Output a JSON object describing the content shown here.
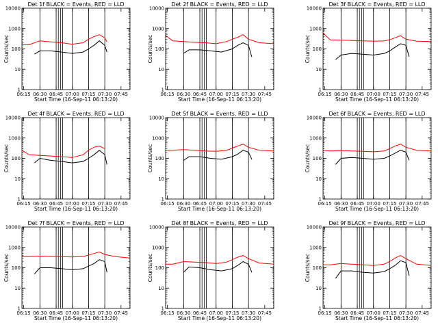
{
  "figure": {
    "panel_count": 9,
    "shared": {
      "xlabel": "Start Time (16-Sep-11 06:13:20)",
      "ylabel": "Counts/sec",
      "x_tick_labels": [
        "06:15",
        "06:30",
        "06:45",
        "07:00",
        "07:15",
        "07:30",
        "07:45"
      ],
      "y_tick_labels": [
        "1",
        "10",
        "100",
        "1000",
        "10000"
      ],
      "colors": {
        "events": "#000000",
        "lld": "#ff0000"
      }
    }
  },
  "chart_data": [
    {
      "type": "line",
      "title": "Det 1f BLACK = Events, RED = LLD",
      "xlabel": "Start Time (16-Sep-11 06:13:20)",
      "ylabel": "Counts/sec",
      "y_scale": "log",
      "ylim": [
        1,
        10000
      ],
      "xlim": [
        "06:13:20",
        "07:53:20"
      ],
      "grid": "dotted",
      "series": [
        {
          "key": "events",
          "color": "#000000",
          "x": [
            "06:25",
            "06:30",
            "06:40",
            "06:50",
            "07:00",
            "07:10",
            "07:15",
            "07:20",
            "07:25",
            "07:30",
            "07:32"
          ],
          "values": [
            55,
            80,
            80,
            70,
            60,
            70,
            100,
            150,
            250,
            150,
            70
          ]
        },
        {
          "key": "lld",
          "color": "#ff0000",
          "x": [
            "06:13:20",
            "06:20",
            "06:30",
            "06:40",
            "06:50",
            "07:00",
            "07:10",
            "07:15",
            "07:20",
            "07:25",
            "07:30",
            "07:32"
          ],
          "values": [
            160,
            160,
            250,
            220,
            200,
            170,
            200,
            300,
            400,
            500,
            350,
            220
          ]
        }
      ]
    },
    {
      "type": "line",
      "title": "Det 2f BLACK = Events, RED = LLD",
      "xlabel": "Start Time (16-Sep-11 06:13:20)",
      "ylabel": "Counts/sec",
      "y_scale": "log",
      "ylim": [
        1,
        10000
      ],
      "xlim": [
        "06:13:20",
        "07:53:20"
      ],
      "grid": "dotted",
      "series": [
        {
          "key": "events",
          "color": "#000000",
          "x": [
            "06:30",
            "06:35",
            "06:45",
            "06:55",
            "07:05",
            "07:15",
            "07:20",
            "07:25",
            "07:30",
            "07:33"
          ],
          "values": [
            60,
            90,
            90,
            80,
            70,
            100,
            150,
            200,
            150,
            40
          ]
        },
        {
          "key": "lld",
          "color": "#ff0000",
          "x": [
            "06:13:20",
            "06:20",
            "06:30",
            "06:40",
            "06:50",
            "07:00",
            "07:10",
            "07:15",
            "07:20",
            "07:25",
            "07:30",
            "07:40",
            "07:53:20"
          ],
          "values": [
            450,
            250,
            230,
            210,
            200,
            180,
            230,
            300,
            370,
            500,
            300,
            200,
            180
          ]
        }
      ]
    },
    {
      "type": "line",
      "title": "Det 3f BLACK = Events, RED = LLD",
      "xlabel": "Start Time (16-Sep-11 06:13:20)",
      "ylabel": "Counts/sec",
      "y_scale": "log",
      "ylim": [
        1,
        10000
      ],
      "xlim": [
        "06:13:20",
        "07:53:20"
      ],
      "grid": "dotted",
      "series": [
        {
          "key": "events",
          "color": "#000000",
          "x": [
            "06:25",
            "06:30",
            "06:40",
            "06:50",
            "07:00",
            "07:10",
            "07:15",
            "07:20",
            "07:25",
            "07:30",
            "07:33"
          ],
          "values": [
            30,
            50,
            60,
            55,
            50,
            60,
            80,
            120,
            180,
            150,
            40
          ]
        },
        {
          "key": "lld",
          "color": "#ff0000",
          "x": [
            "06:13:20",
            "06:20",
            "06:30",
            "06:40",
            "06:50",
            "07:00",
            "07:10",
            "07:15",
            "07:20",
            "07:25",
            "07:30",
            "07:40",
            "07:53:20"
          ],
          "values": [
            600,
            280,
            270,
            260,
            250,
            240,
            250,
            280,
            350,
            450,
            300,
            240,
            230
          ]
        }
      ]
    },
    {
      "type": "line",
      "title": "Det 4f BLACK = Events, RED = LLD",
      "xlabel": "Start Time (16-Sep-11 06:13:20)",
      "ylabel": "Counts/sec",
      "y_scale": "log",
      "ylim": [
        1,
        10000
      ],
      "xlim": [
        "06:13:20",
        "07:53:20"
      ],
      "grid": "dotted",
      "series": [
        {
          "key": "events",
          "color": "#000000",
          "x": [
            "06:25",
            "06:30",
            "06:40",
            "06:50",
            "07:00",
            "07:10",
            "07:15",
            "07:20",
            "07:25",
            "07:30",
            "07:32"
          ],
          "values": [
            60,
            100,
            80,
            70,
            60,
            70,
            100,
            150,
            250,
            150,
            50
          ]
        },
        {
          "key": "lld",
          "color": "#ff0000",
          "x": [
            "06:13:20",
            "06:20",
            "06:30",
            "06:40",
            "06:50",
            "07:00",
            "07:10",
            "07:15",
            "07:20",
            "07:25",
            "07:30"
          ],
          "values": [
            250,
            150,
            140,
            130,
            120,
            110,
            150,
            250,
            350,
            400,
            300
          ]
        }
      ]
    },
    {
      "type": "line",
      "title": "Det 5f BLACK = Events, RED = LLD",
      "xlabel": "Start Time (16-Sep-11 06:13:20)",
      "ylabel": "Counts/sec",
      "y_scale": "log",
      "ylim": [
        1,
        10000
      ],
      "xlim": [
        "06:13:20",
        "07:53:20"
      ],
      "grid": "dotted",
      "series": [
        {
          "key": "events",
          "color": "#000000",
          "x": [
            "06:30",
            "06:35",
            "06:45",
            "06:55",
            "07:05",
            "07:15",
            "07:20",
            "07:25",
            "07:30",
            "07:33"
          ],
          "values": [
            80,
            120,
            120,
            100,
            90,
            120,
            160,
            250,
            200,
            90
          ]
        },
        {
          "key": "lld",
          "color": "#ff0000",
          "x": [
            "06:13:20",
            "06:20",
            "06:30",
            "06:40",
            "06:50",
            "07:00",
            "07:10",
            "07:15",
            "07:20",
            "07:25",
            "07:30",
            "07:40",
            "07:53:20"
          ],
          "values": [
            250,
            250,
            270,
            250,
            230,
            220,
            250,
            320,
            400,
            500,
            350,
            250,
            230
          ]
        }
      ]
    },
    {
      "type": "line",
      "title": "Det 6f BLACK = Events, RED = LLD",
      "xlabel": "Start Time (16-Sep-11 06:13:20)",
      "ylabel": "Counts/sec",
      "y_scale": "log",
      "ylim": [
        1,
        10000
      ],
      "xlim": [
        "06:13:20",
        "07:53:20"
      ],
      "grid": "dotted",
      "series": [
        {
          "key": "events",
          "color": "#000000",
          "x": [
            "06:25",
            "06:30",
            "06:40",
            "06:50",
            "07:00",
            "07:10",
            "07:15",
            "07:20",
            "07:25",
            "07:30",
            "07:33"
          ],
          "values": [
            50,
            100,
            110,
            100,
            90,
            100,
            130,
            180,
            250,
            200,
            80
          ]
        },
        {
          "key": "lld",
          "color": "#ff0000",
          "x": [
            "06:13:20",
            "06:20",
            "06:30",
            "06:40",
            "06:50",
            "07:00",
            "07:10",
            "07:15",
            "07:20",
            "07:25",
            "07:30",
            "07:40",
            "07:53:20"
          ],
          "values": [
            250,
            230,
            240,
            230,
            220,
            210,
            230,
            300,
            400,
            500,
            350,
            250,
            230
          ]
        }
      ]
    },
    {
      "type": "line",
      "title": "Det 7f BLACK = Events, RED = LLD",
      "xlabel": "Start Time (16-Sep-11 06:13:20)",
      "ylabel": "Counts/sec",
      "y_scale": "log",
      "ylim": [
        1,
        10000
      ],
      "xlim": [
        "06:13:20",
        "07:53:20"
      ],
      "grid": "dotted",
      "series": [
        {
          "key": "events",
          "color": "#000000",
          "x": [
            "06:25",
            "06:30",
            "06:40",
            "06:50",
            "07:00",
            "07:10",
            "07:15",
            "07:20",
            "07:25",
            "07:30",
            "07:32"
          ],
          "values": [
            50,
            100,
            100,
            90,
            80,
            90,
            120,
            160,
            250,
            200,
            60
          ]
        },
        {
          "key": "lld",
          "color": "#ff0000",
          "x": [
            "06:13:20",
            "06:20",
            "06:30",
            "06:40",
            "06:50",
            "07:00",
            "07:10",
            "07:15",
            "07:20",
            "07:25",
            "07:30",
            "07:40",
            "07:53:20"
          ],
          "values": [
            350,
            350,
            370,
            360,
            350,
            340,
            360,
            420,
            500,
            600,
            450,
            350,
            300
          ]
        }
      ]
    },
    {
      "type": "line",
      "title": "Det 8f BLACK = Events, RED = LLD",
      "xlabel": "Start Time (16-Sep-11 06:13:20)",
      "ylabel": "Counts/sec",
      "y_scale": "log",
      "ylim": [
        1,
        10000
      ],
      "xlim": [
        "06:13:20",
        "07:53:20"
      ],
      "grid": "dotted",
      "series": [
        {
          "key": "events",
          "color": "#000000",
          "x": [
            "06:30",
            "06:35",
            "06:45",
            "06:55",
            "07:05",
            "07:15",
            "07:20",
            "07:25",
            "07:30",
            "07:33"
          ],
          "values": [
            60,
            110,
            100,
            80,
            70,
            90,
            130,
            200,
            150,
            60
          ]
        },
        {
          "key": "lld",
          "color": "#ff0000",
          "x": [
            "06:13:20",
            "06:20",
            "06:30",
            "06:40",
            "06:50",
            "07:00",
            "07:10",
            "07:15",
            "07:20",
            "07:25",
            "07:30",
            "07:40",
            "07:53:20"
          ],
          "values": [
            150,
            150,
            200,
            190,
            180,
            160,
            190,
            250,
            330,
            400,
            280,
            170,
            150
          ]
        }
      ]
    },
    {
      "type": "line",
      "title": "Det 9f BLACK = Events, RED = LLD",
      "xlabel": "Start Time (16-Sep-11 06:13:20)",
      "ylabel": "Counts/sec",
      "y_scale": "log",
      "ylim": [
        1,
        10000
      ],
      "xlim": [
        "06:13:20",
        "07:53:20"
      ],
      "grid": "dotted",
      "series": [
        {
          "key": "events",
          "color": "#000000",
          "x": [
            "06:25",
            "06:30",
            "06:40",
            "06:50",
            "07:00",
            "07:10",
            "07:15",
            "07:20",
            "07:25",
            "07:30",
            "07:33"
          ],
          "values": [
            30,
            70,
            70,
            60,
            55,
            65,
            90,
            130,
            220,
            180,
            40
          ]
        },
        {
          "key": "lld",
          "color": "#ff0000",
          "x": [
            "06:13:20",
            "06:20",
            "06:30",
            "06:40",
            "06:50",
            "07:00",
            "07:10",
            "07:15",
            "07:20",
            "07:25",
            "07:30",
            "07:40",
            "07:53:20"
          ],
          "values": [
            140,
            140,
            160,
            150,
            140,
            130,
            150,
            200,
            300,
            400,
            280,
            150,
            130
          ]
        }
      ]
    }
  ]
}
